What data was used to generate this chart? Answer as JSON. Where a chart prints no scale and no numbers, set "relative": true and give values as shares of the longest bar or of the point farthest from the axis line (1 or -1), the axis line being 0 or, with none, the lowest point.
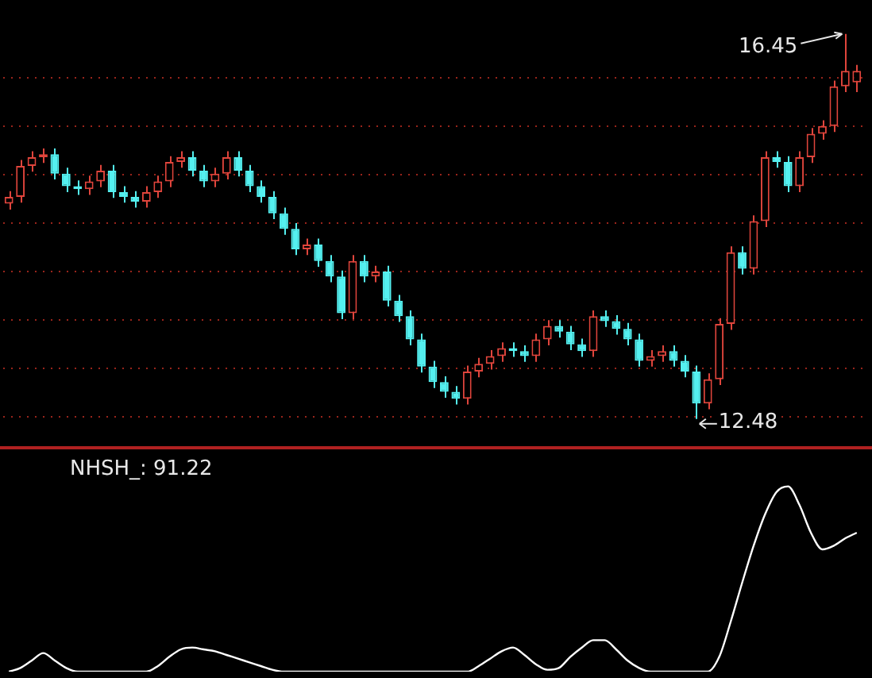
{
  "chart_data": [
    {
      "type": "candlestick",
      "categories": [
        null,
        null,
        null,
        null,
        null,
        null,
        null,
        null,
        null,
        null,
        null,
        null,
        null,
        null,
        null,
        null,
        null,
        null,
        null,
        null,
        null,
        null,
        null,
        null,
        null,
        null,
        null,
        null,
        null,
        null,
        null,
        null,
        null,
        null,
        null,
        null,
        null,
        null,
        null,
        null,
        null,
        null,
        null,
        null,
        null,
        null,
        null,
        null,
        null,
        null,
        null,
        null,
        null,
        null,
        null,
        null,
        null,
        null,
        null,
        null,
        null,
        null,
        null,
        null,
        null,
        null,
        null,
        null,
        null,
        null,
        null,
        null,
        null,
        null,
        null
      ],
      "ohlc": [
        [
          14.7,
          14.83,
          14.64,
          14.77
        ],
        [
          14.77,
          15.15,
          14.71,
          15.09
        ],
        [
          15.09,
          15.24,
          15.03,
          15.18
        ],
        [
          15.18,
          15.27,
          15.12,
          15.21
        ],
        [
          15.21,
          15.27,
          14.95,
          15.01
        ],
        [
          15.01,
          15.07,
          14.82,
          14.88
        ],
        [
          14.88,
          14.94,
          14.79,
          14.85
        ],
        [
          14.85,
          14.99,
          14.79,
          14.93
        ],
        [
          14.93,
          15.1,
          14.87,
          15.04
        ],
        [
          15.04,
          15.1,
          14.76,
          14.82
        ],
        [
          14.82,
          14.88,
          14.71,
          14.77
        ],
        [
          14.77,
          14.83,
          14.66,
          14.72
        ],
        [
          14.72,
          14.88,
          14.66,
          14.82
        ],
        [
          14.82,
          14.99,
          14.76,
          14.93
        ],
        [
          14.93,
          15.19,
          14.87,
          15.13
        ],
        [
          15.13,
          15.24,
          15.07,
          15.18
        ],
        [
          15.18,
          15.24,
          14.98,
          15.04
        ],
        [
          15.04,
          15.1,
          14.87,
          14.93
        ],
        [
          14.93,
          15.07,
          14.87,
          15.01
        ],
        [
          15.01,
          15.24,
          14.95,
          15.18
        ],
        [
          15.18,
          15.24,
          14.98,
          15.04
        ],
        [
          15.04,
          15.1,
          14.82,
          14.88
        ],
        [
          14.88,
          14.94,
          14.71,
          14.77
        ],
        [
          14.77,
          14.83,
          14.54,
          14.6
        ],
        [
          14.6,
          14.66,
          14.38,
          14.44
        ],
        [
          14.44,
          14.5,
          14.17,
          14.23
        ],
        [
          14.23,
          14.34,
          14.17,
          14.28
        ],
        [
          14.28,
          14.34,
          14.05,
          14.11
        ],
        [
          14.11,
          14.17,
          13.89,
          13.95
        ],
        [
          13.95,
          14.01,
          13.51,
          13.57
        ],
        [
          13.57,
          14.17,
          13.51,
          14.11
        ],
        [
          14.11,
          14.17,
          13.89,
          13.95
        ],
        [
          13.95,
          14.06,
          13.89,
          14.0
        ],
        [
          14.0,
          14.06,
          13.64,
          13.7
        ],
        [
          13.7,
          13.76,
          13.48,
          13.54
        ],
        [
          13.54,
          13.6,
          13.24,
          13.3
        ],
        [
          13.3,
          13.36,
          12.96,
          13.02
        ],
        [
          13.02,
          13.08,
          12.8,
          12.86
        ],
        [
          12.86,
          12.92,
          12.7,
          12.76
        ],
        [
          12.76,
          12.82,
          12.63,
          12.69
        ],
        [
          12.69,
          13.03,
          12.63,
          12.97
        ],
        [
          12.97,
          13.11,
          12.91,
          13.05
        ],
        [
          13.05,
          13.19,
          12.99,
          13.13
        ],
        [
          13.13,
          13.27,
          13.07,
          13.21
        ],
        [
          13.21,
          13.27,
          13.12,
          13.18
        ],
        [
          13.18,
          13.24,
          13.07,
          13.13
        ],
        [
          13.13,
          13.36,
          13.07,
          13.3
        ],
        [
          13.3,
          13.5,
          13.24,
          13.44
        ],
        [
          13.44,
          13.5,
          13.32,
          13.38
        ],
        [
          13.38,
          13.44,
          13.19,
          13.25
        ],
        [
          13.25,
          13.31,
          13.12,
          13.18
        ],
        [
          13.18,
          13.6,
          13.12,
          13.54
        ],
        [
          13.54,
          13.6,
          13.43,
          13.49
        ],
        [
          13.49,
          13.55,
          13.35,
          13.41
        ],
        [
          13.41,
          13.47,
          13.24,
          13.3
        ],
        [
          13.3,
          13.36,
          13.02,
          13.08
        ],
        [
          13.08,
          13.19,
          13.02,
          13.13
        ],
        [
          13.13,
          13.24,
          13.07,
          13.18
        ],
        [
          13.18,
          13.24,
          13.02,
          13.08
        ],
        [
          13.08,
          13.14,
          12.91,
          12.97
        ],
        [
          12.97,
          13.03,
          12.48,
          12.64
        ],
        [
          12.64,
          12.95,
          12.58,
          12.89
        ],
        [
          12.89,
          13.52,
          12.83,
          13.46
        ],
        [
          13.46,
          14.26,
          13.4,
          14.2
        ],
        [
          14.2,
          14.26,
          13.97,
          14.03
        ],
        [
          14.03,
          14.58,
          13.97,
          14.52
        ],
        [
          14.52,
          15.24,
          14.46,
          15.18
        ],
        [
          15.18,
          15.24,
          15.07,
          15.13
        ],
        [
          15.13,
          15.19,
          14.82,
          14.88
        ],
        [
          14.88,
          15.24,
          14.82,
          15.18
        ],
        [
          15.18,
          15.48,
          15.12,
          15.42
        ],
        [
          15.42,
          15.56,
          15.36,
          15.5
        ],
        [
          15.5,
          15.97,
          15.44,
          15.91
        ],
        [
          15.91,
          16.45,
          15.85,
          16.07
        ],
        [
          15.95,
          16.13,
          15.85,
          16.07
        ]
      ],
      "ylim": [
        12.2,
        16.8
      ],
      "yticks": [
        {
          "value": 12.5,
          "label": null
        },
        {
          "value": 13,
          "label": null
        },
        {
          "value": 13.5,
          "label": null
        },
        {
          "value": 14,
          "label": null
        },
        {
          "value": 14.5,
          "label": null
        },
        {
          "value": 15,
          "label": null
        },
        {
          "value": 15.5,
          "label": null
        },
        {
          "value": 16,
          "label": null
        }
      ],
      "tick_labels": false,
      "grid": "y",
      "annotations": [
        "16.45",
        "12.48"
      ]
    },
    {
      "type": "line",
      "relative": true,
      "title": "NHSH_: 91.22",
      "color": "#ffffff",
      "categories": [
        null,
        null,
        null,
        null,
        null,
        null,
        null,
        null,
        null,
        null,
        null,
        null,
        null,
        null,
        null,
        null,
        null,
        null,
        null,
        null,
        null,
        null,
        null,
        null,
        null,
        null,
        null,
        null,
        null,
        null,
        null,
        null,
        null,
        null,
        null,
        null,
        null,
        null,
        null,
        null,
        null,
        null,
        null,
        null,
        null,
        null,
        null,
        null,
        null,
        null,
        null,
        null,
        null,
        null,
        null,
        null,
        null,
        null,
        null,
        null,
        null,
        null,
        null,
        null,
        null,
        null,
        null,
        null,
        null,
        null,
        null,
        null,
        null,
        null,
        null
      ],
      "values": [
        0,
        0.02,
        0.06,
        0.1,
        0.06,
        0.02,
        0,
        0,
        0,
        0,
        0,
        0,
        0,
        0.03,
        0.08,
        0.12,
        0.13,
        0.12,
        0.11,
        0.09,
        0.07,
        0.05,
        0.03,
        0.01,
        0,
        0,
        0,
        0,
        0,
        0,
        0,
        0,
        0,
        0,
        0,
        0,
        0,
        0,
        0,
        0,
        0,
        0.03,
        0.07,
        0.11,
        0.13,
        0.09,
        0.04,
        0.01,
        0.02,
        0.08,
        0.13,
        0.17,
        0.17,
        0.12,
        0.06,
        0.02,
        0,
        0,
        0,
        0,
        0,
        0,
        0.08,
        0.27,
        0.48,
        0.68,
        0.85,
        0.97,
        1,
        0.9,
        0.75,
        0.66,
        0.68,
        0.72,
        0.75
      ],
      "marker": "none"
    }
  ]
}
